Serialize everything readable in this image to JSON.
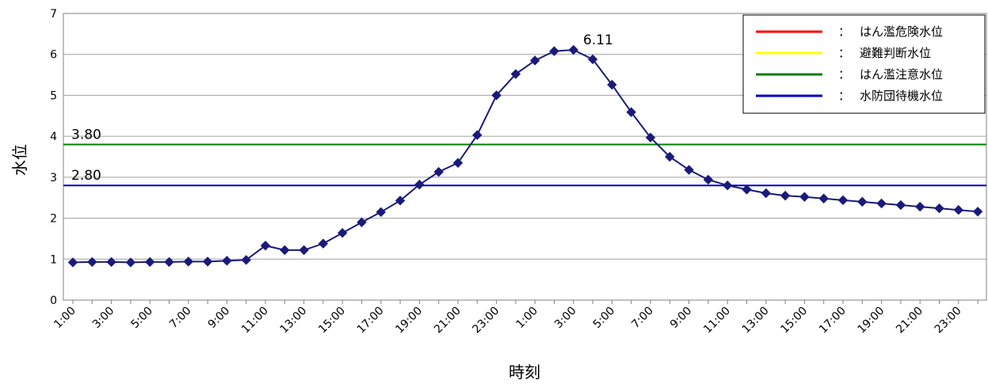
{
  "chart_data": {
    "type": "line",
    "title": "",
    "xlabel": "時刻",
    "ylabel": "水位",
    "ylim": [
      0,
      7
    ],
    "yticks": [
      "0",
      "1",
      "2",
      "3",
      "4",
      "5",
      "6",
      "7"
    ],
    "grid": true,
    "legend_position": "top-right",
    "x": [
      "1:00",
      "2:00",
      "3:00",
      "4:00",
      "5:00",
      "6:00",
      "7:00",
      "8:00",
      "9:00",
      "10:00",
      "11:00",
      "12:00",
      "13:00",
      "14:00",
      "15:00",
      "16:00",
      "17:00",
      "18:00",
      "19:00",
      "20:00",
      "21:00",
      "22:00",
      "23:00",
      "0:00",
      "1:00",
      "2:00",
      "3:00",
      "4:00",
      "5:00",
      "6:00",
      "7:00",
      "8:00",
      "9:00",
      "10:00",
      "11:00",
      "12:00",
      "13:00",
      "14:00",
      "15:00",
      "16:00",
      "17:00",
      "18:00",
      "19:00",
      "20:00",
      "21:00",
      "22:00",
      "23:00",
      "0:00"
    ],
    "xtick_labels": [
      "1:00",
      "3:00",
      "5:00",
      "7:00",
      "9:00",
      "11:00",
      "13:00",
      "15:00",
      "17:00",
      "19:00",
      "21:00",
      "23:00",
      "1:00",
      "3:00",
      "5:00",
      "7:00",
      "9:00",
      "11:00",
      "13:00",
      "15:00",
      "17:00",
      "19:00",
      "21:00",
      "23:00"
    ],
    "series": [
      {
        "color": "#1a1a7a",
        "marker": "diamond",
        "values": [
          0.92,
          0.93,
          0.93,
          0.92,
          0.93,
          0.93,
          0.94,
          0.94,
          0.96,
          0.98,
          1.33,
          1.22,
          1.22,
          1.38,
          1.64,
          1.9,
          2.15,
          2.43,
          2.82,
          3.13,
          3.35,
          4.03,
          5.0,
          5.52,
          5.85,
          6.08,
          6.11,
          5.88,
          5.26,
          4.59,
          3.97,
          3.5,
          3.18,
          2.94,
          2.8,
          2.7,
          2.61,
          2.55,
          2.52,
          2.48,
          2.44,
          2.4,
          2.36,
          2.32,
          2.28,
          2.24,
          2.2,
          2.16
        ]
      }
    ],
    "reference_lines": [
      {
        "name": "はん濫注意水位",
        "value": 3.8,
        "label": "3.80",
        "color": "#008000"
      },
      {
        "name": "水防団待機水位",
        "value": 2.8,
        "label": "2.80",
        "color": "#0000cc"
      }
    ],
    "peak_annotation": "6.11",
    "legend": [
      {
        "label": "はん濫危険水位",
        "separator": "：",
        "color": "#ff0000"
      },
      {
        "label": "避難判断水位",
        "separator": "：",
        "color": "#ffff00"
      },
      {
        "label": "はん濫注意水位",
        "separator": "：",
        "color": "#008000"
      },
      {
        "label": "水防団待機水位",
        "separator": "：",
        "color": "#0000cc"
      }
    ]
  }
}
